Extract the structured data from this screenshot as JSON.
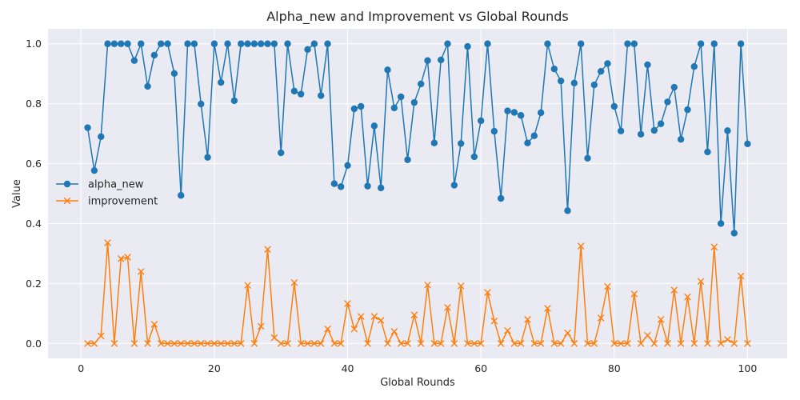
{
  "chart_data": {
    "type": "line",
    "title": "Alpha_new and Improvement vs Global Rounds",
    "xlabel": "Global Rounds",
    "ylabel": "Value",
    "xlim": [
      -4.95,
      105.95
    ],
    "ylim": [
      -0.05,
      1.05
    ],
    "x_ticks": [
      0,
      20,
      40,
      60,
      80,
      100
    ],
    "x_tick_labels": [
      "0",
      "20",
      "40",
      "60",
      "80",
      "100"
    ],
    "y_ticks": [
      0.0,
      0.2,
      0.4,
      0.6,
      0.8,
      1.0
    ],
    "y_tick_labels": [
      "0.0",
      "0.2",
      "0.4",
      "0.6",
      "0.8",
      "1.0"
    ],
    "grid": true,
    "legend_position": "center-left",
    "x": [
      1,
      2,
      3,
      4,
      5,
      6,
      7,
      8,
      9,
      10,
      11,
      12,
      13,
      14,
      15,
      16,
      17,
      18,
      19,
      20,
      21,
      22,
      23,
      24,
      25,
      26,
      27,
      28,
      29,
      30,
      31,
      32,
      33,
      34,
      35,
      36,
      37,
      38,
      39,
      40,
      41,
      42,
      43,
      44,
      45,
      46,
      47,
      48,
      49,
      50,
      51,
      52,
      53,
      54,
      55,
      56,
      57,
      58,
      59,
      60,
      61,
      62,
      63,
      64,
      65,
      66,
      67,
      68,
      69,
      70,
      71,
      72,
      73,
      74,
      75,
      76,
      77,
      78,
      79,
      80,
      81,
      82,
      83,
      84,
      85,
      86,
      87,
      88,
      89,
      90,
      91,
      92,
      93,
      94,
      95,
      96,
      97,
      98,
      99,
      100
    ],
    "series": [
      {
        "name": "alpha_new",
        "color": "#1f77b4",
        "marker": "circle",
        "values": [
          0.72,
          0.577,
          0.69,
          1.0,
          1.0,
          1.0,
          1.0,
          0.944,
          1.0,
          0.858,
          0.962,
          1.0,
          1.0,
          0.901,
          0.494,
          1.0,
          1.0,
          0.799,
          0.621,
          1.0,
          0.871,
          1.0,
          0.81,
          1.0,
          1.0,
          1.0,
          1.0,
          1.0,
          1.0,
          0.636,
          1.0,
          0.842,
          0.832,
          0.981,
          1.0,
          0.827,
          1.0,
          0.533,
          0.523,
          0.594,
          0.783,
          0.791,
          0.525,
          0.726,
          0.519,
          0.913,
          0.786,
          0.823,
          0.613,
          0.804,
          0.866,
          0.944,
          0.669,
          0.946,
          1.0,
          0.528,
          0.667,
          0.991,
          0.623,
          0.743,
          1.0,
          0.708,
          0.484,
          0.776,
          0.771,
          0.761,
          0.669,
          0.693,
          0.77,
          1.0,
          0.916,
          0.876,
          0.443,
          0.869,
          1.0,
          0.618,
          0.863,
          0.908,
          0.934,
          0.791,
          0.709,
          1.0,
          1.0,
          0.698,
          0.93,
          0.711,
          0.733,
          0.806,
          0.855,
          0.681,
          0.78,
          0.924,
          1.0,
          0.639,
          1.0,
          0.4,
          0.71,
          0.368,
          1.0,
          0.666
        ]
      },
      {
        "name": "improvement",
        "color": "#ff7f0e",
        "marker": "x",
        "values": [
          0.0,
          0.0,
          0.025,
          0.336,
          0.0,
          0.283,
          0.288,
          0.0,
          0.24,
          0.0,
          0.064,
          0.0,
          0.0,
          0.0,
          0.0,
          0.0,
          0.0,
          0.0,
          0.0,
          0.0,
          0.0,
          0.0,
          0.0,
          0.0,
          0.194,
          0.0,
          0.057,
          0.314,
          0.019,
          0.0,
          0.0,
          0.203,
          0.0,
          0.0,
          0.0,
          0.0,
          0.048,
          0.0,
          0.0,
          0.133,
          0.048,
          0.09,
          0.0,
          0.09,
          0.077,
          0.0,
          0.04,
          0.0,
          0.0,
          0.095,
          0.0,
          0.195,
          0.0,
          0.0,
          0.12,
          0.0,
          0.192,
          0.0,
          0.0,
          0.0,
          0.17,
          0.075,
          0.0,
          0.043,
          0.0,
          0.0,
          0.08,
          0.0,
          0.0,
          0.117,
          0.0,
          0.0,
          0.035,
          0.0,
          0.325,
          0.0,
          0.0,
          0.085,
          0.19,
          0.0,
          0.0,
          0.0,
          0.165,
          0.0,
          0.027,
          0.0,
          0.08,
          0.0,
          0.178,
          0.0,
          0.155,
          0.0,
          0.207,
          0.0,
          0.322,
          0.0,
          0.013,
          0.0,
          0.225,
          0.0
        ]
      }
    ]
  }
}
